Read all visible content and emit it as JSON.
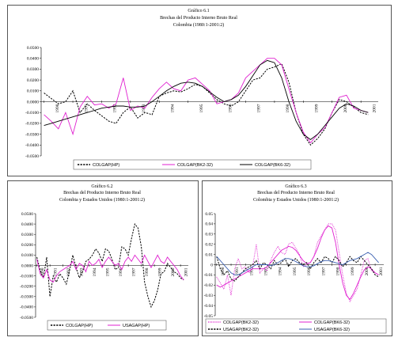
{
  "chart_data": [
    {
      "type": "line",
      "title": "Gráfico 6.1",
      "subtitle": "Brechas del Producto Interno Bruto Real",
      "subtitle2": "Colombia (1980:1-2001:2)",
      "ylim": [
        -0.05,
        0.05
      ],
      "yticks": [
        "0.0500",
        "0.0400",
        "0.0300",
        "0.0200",
        "0.0100",
        "0.0000",
        "-0.0100",
        "-0.0200",
        "-0.0300",
        "-0.0400",
        "-0.0500"
      ],
      "ytick_values": [
        0.05,
        0.04,
        0.03,
        0.02,
        0.01,
        0,
        -0.01,
        -0.02,
        -0.03,
        -0.04,
        -0.05
      ],
      "xticks": [
        "1990",
        "1991",
        "1992",
        "1993",
        "1994",
        "1995",
        "1996",
        "1997",
        "1998",
        "1999",
        "2000",
        "2001"
      ],
      "xlim": [
        1989.9,
        2001.6
      ],
      "x": [
        1990.0,
        1990.25,
        1990.5,
        1990.75,
        1991.0,
        1991.25,
        1991.5,
        1991.75,
        1992.0,
        1992.25,
        1992.5,
        1992.75,
        1993.0,
        1993.25,
        1993.5,
        1993.75,
        1994.0,
        1994.25,
        1994.5,
        1994.75,
        1995.0,
        1995.25,
        1995.5,
        1995.75,
        1996.0,
        1996.25,
        1996.5,
        1996.75,
        1997.0,
        1997.25,
        1997.5,
        1997.75,
        1998.0,
        1998.25,
        1998.5,
        1998.75,
        1999.0,
        1999.25,
        1999.5,
        1999.75,
        2000.0,
        2000.25,
        2000.5,
        2000.75,
        2001.0,
        2001.25
      ],
      "series": [
        {
          "name": "COLGAP(HP)",
          "style": "dashed",
          "color": "#000000",
          "values": [
            0.008,
            0.003,
            -0.002,
            0.0,
            0.01,
            -0.01,
            -0.002,
            -0.008,
            -0.013,
            -0.018,
            -0.02,
            -0.01,
            -0.005,
            -0.015,
            -0.01,
            -0.012,
            0.005,
            0.008,
            0.01,
            0.009,
            0.012,
            0.016,
            0.014,
            0.008,
            0.002,
            -0.002,
            -0.004,
            0.0,
            0.01,
            0.02,
            0.022,
            0.03,
            0.032,
            0.035,
            0.018,
            -0.01,
            -0.03,
            -0.04,
            -0.034,
            -0.025,
            -0.01,
            0.002,
            0.0,
            -0.005,
            -0.01,
            -0.012
          ]
        },
        {
          "name": "COLGAP(BK2-32)",
          "style": "solid",
          "color": "#e020d0",
          "values": [
            -0.012,
            -0.018,
            -0.025,
            -0.01,
            -0.03,
            -0.005,
            0.005,
            -0.003,
            -0.002,
            -0.006,
            -0.002,
            0.022,
            -0.008,
            -0.004,
            -0.006,
            0.004,
            0.012,
            0.018,
            0.012,
            0.01,
            0.02,
            0.022,
            0.016,
            0.01,
            -0.002,
            0.0,
            0.002,
            0.008,
            0.022,
            0.028,
            0.034,
            0.04,
            0.04,
            0.034,
            0.012,
            -0.01,
            -0.028,
            -0.038,
            -0.03,
            -0.024,
            -0.01,
            0.004,
            0.006,
            -0.006,
            -0.008,
            -0.01
          ]
        },
        {
          "name": "COLGAP(BK6-32)",
          "style": "solid",
          "color": "#000000",
          "values": [
            -0.022,
            -0.02,
            -0.018,
            -0.016,
            -0.014,
            -0.012,
            -0.01,
            -0.008,
            -0.006,
            -0.005,
            -0.004,
            -0.004,
            -0.005,
            -0.005,
            -0.004,
            0.0,
            0.005,
            0.01,
            0.014,
            0.017,
            0.018,
            0.017,
            0.014,
            0.009,
            0.004,
            0.0,
            0.002,
            0.006,
            0.014,
            0.024,
            0.034,
            0.038,
            0.036,
            0.022,
            0.0,
            -0.018,
            -0.03,
            -0.035,
            -0.03,
            -0.022,
            -0.014,
            -0.006,
            -0.002,
            -0.004,
            -0.008,
            -0.01
          ]
        }
      ],
      "legend": [
        "COLGAP(HP)",
        "COLGAP(BK2-32)",
        "COLGAP(BK6-32)"
      ],
      "legend_position": "bottom"
    },
    {
      "type": "line",
      "title": "Gráfico 6.2",
      "subtitle": "Brechas del Producto Interno Bruto Real",
      "subtitle2": "Colombia y Estados Unidos (1980:1-2001:2)",
      "ylim": [
        -0.05,
        0.05
      ],
      "yticks": [
        "0.0500",
        "0.0400",
        "0.0300",
        "0.0200",
        "0.0100",
        "0.0000",
        "-0.0100",
        "-0.0200",
        "-0.0300",
        "-0.0400",
        "-0.0500"
      ],
      "ytick_values": [
        0.05,
        0.04,
        0.03,
        0.02,
        0.01,
        0,
        -0.01,
        -0.02,
        -0.03,
        -0.04,
        -0.05
      ],
      "xticks": [
        "1990",
        "1991",
        "1992",
        "1993",
        "1994",
        "1995",
        "1996",
        "1997",
        "1998",
        "1999",
        "2000",
        "2001"
      ],
      "xlim": [
        1989.9,
        2001.6
      ],
      "x": [
        1990.0,
        1990.25,
        1990.5,
        1990.75,
        1991.0,
        1991.25,
        1991.5,
        1991.75,
        1992.0,
        1992.25,
        1992.5,
        1992.75,
        1993.0,
        1993.25,
        1993.5,
        1993.75,
        1994.0,
        1994.25,
        1994.5,
        1994.75,
        1995.0,
        1995.25,
        1995.5,
        1995.75,
        1996.0,
        1996.25,
        1996.5,
        1996.75,
        1997.0,
        1997.25,
        1997.5,
        1997.75,
        1998.0,
        1998.25,
        1998.5,
        1998.75,
        1999.0,
        1999.25,
        1999.5,
        1999.75,
        2000.0,
        2000.25,
        2000.5,
        2000.75,
        2001.0,
        2001.25
      ],
      "series": [
        {
          "name": "COLGAP(HP)",
          "style": "dashed",
          "color": "#000000",
          "values": [
            0.008,
            -0.005,
            -0.012,
            0.008,
            -0.03,
            -0.01,
            -0.016,
            -0.008,
            -0.012,
            -0.018,
            -0.005,
            0.01,
            -0.002,
            -0.012,
            -0.006,
            0.004,
            0.006,
            0.01,
            0.016,
            0.012,
            0.004,
            0.016,
            0.014,
            0.006,
            -0.004,
            -0.002,
            0.018,
            0.016,
            0.01,
            0.026,
            0.04,
            0.036,
            0.018,
            -0.016,
            -0.03,
            -0.04,
            -0.034,
            -0.024,
            -0.008,
            -0.006,
            0.002,
            -0.002,
            -0.006,
            -0.008,
            -0.012,
            -0.014
          ]
        },
        {
          "name": "USAGAP(HP)",
          "style": "solid",
          "color": "#e020d0",
          "values": [
            0.006,
            -0.008,
            -0.012,
            -0.004,
            -0.014,
            -0.016,
            -0.01,
            -0.006,
            -0.004,
            -0.002,
            0.0,
            0.004,
            -0.004,
            0.002,
            0.0,
            -0.006,
            0.004,
            0.0,
            0.002,
            0.006,
            -0.002,
            0.004,
            0.008,
            0.004,
            0.0,
            0.002,
            -0.004,
            0.004,
            0.008,
            0.004,
            0.01,
            0.006,
            0.002,
            0.01,
            0.004,
            -0.002,
            0.004,
            0.01,
            0.004,
            0.002,
            0.008,
            0.004,
            0.0,
            -0.004,
            -0.01,
            -0.014
          ]
        }
      ],
      "legend": [
        "COLGAP(HP)",
        "USAGAP(HP)"
      ],
      "legend_position": "bottom"
    },
    {
      "type": "line",
      "title": "Gráfico 6.3",
      "subtitle": "Brechas del Producto Interno Bruto Real",
      "subtitle2": "Colombia y Estados Unidos (1980:1-2001:2)",
      "ylim": [
        -0.05,
        0.05
      ],
      "yticks": [
        "0.05",
        "0.04",
        "0.03",
        "0.02",
        "0.01",
        "0",
        "-0.01",
        "-0.02",
        "-0.03",
        "-0.04",
        "-0.05"
      ],
      "ytick_values": [
        0.05,
        0.04,
        0.03,
        0.02,
        0.01,
        0,
        -0.01,
        -0.02,
        -0.03,
        -0.04,
        -0.05
      ],
      "xticks": [
        "1990",
        "1991",
        "1992",
        "1993",
        "1994",
        "1995",
        "1996",
        "1997",
        "1998",
        "1999",
        "2000",
        "2001"
      ],
      "xlim": [
        1989.9,
        2001.6
      ],
      "x": [
        1990.0,
        1990.25,
        1990.5,
        1990.75,
        1991.0,
        1991.25,
        1991.5,
        1991.75,
        1992.0,
        1992.25,
        1992.5,
        1992.75,
        1993.0,
        1993.25,
        1993.5,
        1993.75,
        1994.0,
        1994.25,
        1994.5,
        1994.75,
        1995.0,
        1995.25,
        1995.5,
        1995.75,
        1996.0,
        1996.25,
        1996.5,
        1996.75,
        1997.0,
        1997.25,
        1997.5,
        1997.75,
        1998.0,
        1998.25,
        1998.5,
        1998.75,
        1999.0,
        1999.25,
        1999.5,
        1999.75,
        2000.0,
        2000.25,
        2000.5,
        2000.75,
        2001.0,
        2001.25
      ],
      "series": [
        {
          "name": "COLGAP(BK2-32)",
          "style": "dotted",
          "color": "#e020d0",
          "values": [
            -0.012,
            -0.018,
            -0.024,
            -0.01,
            -0.03,
            -0.004,
            0.006,
            -0.004,
            -0.002,
            -0.008,
            -0.002,
            0.02,
            -0.008,
            -0.004,
            -0.006,
            0.004,
            0.012,
            0.018,
            0.012,
            0.01,
            0.02,
            0.022,
            0.016,
            0.01,
            -0.002,
            0.0,
            0.002,
            0.008,
            0.022,
            0.028,
            0.034,
            0.04,
            0.04,
            0.034,
            0.012,
            -0.01,
            -0.028,
            -0.036,
            -0.03,
            -0.024,
            -0.01,
            0.004,
            0.006,
            -0.006,
            -0.008,
            -0.01
          ]
        },
        {
          "name": "COLGAP(BK6-32)",
          "style": "solid",
          "color": "#e020d0",
          "values": [
            -0.02,
            -0.022,
            -0.02,
            -0.018,
            -0.016,
            -0.014,
            -0.012,
            -0.01,
            -0.008,
            -0.006,
            -0.004,
            -0.004,
            -0.004,
            -0.004,
            -0.002,
            0.002,
            0.006,
            0.01,
            0.014,
            0.016,
            0.018,
            0.017,
            0.014,
            0.009,
            0.004,
            0.001,
            0.002,
            0.008,
            0.016,
            0.026,
            0.034,
            0.038,
            0.036,
            0.022,
            0.0,
            -0.018,
            -0.03,
            -0.034,
            -0.028,
            -0.02,
            -0.012,
            -0.005,
            -0.002,
            -0.004,
            -0.008,
            -0.01
          ]
        },
        {
          "name": "USAGAP(BK2-32)",
          "style": "dashed",
          "color": "#000000",
          "values": [
            0.008,
            -0.004,
            -0.01,
            -0.006,
            -0.014,
            -0.016,
            -0.012,
            -0.008,
            -0.004,
            -0.002,
            0.0,
            0.004,
            -0.004,
            0.002,
            0.0,
            -0.004,
            0.004,
            0.0,
            0.002,
            0.006,
            -0.002,
            0.004,
            0.006,
            0.002,
            0.0,
            0.002,
            -0.004,
            0.002,
            0.006,
            0.002,
            0.008,
            0.006,
            0.002,
            0.008,
            0.004,
            -0.002,
            0.002,
            0.008,
            0.004,
            0.002,
            0.008,
            0.004,
            0.0,
            -0.004,
            -0.01,
            -0.012
          ]
        },
        {
          "name": "USAGAP(BK6-32)",
          "style": "solid",
          "color": "#3a5fb0",
          "values": [
            0.008,
            0.004,
            0.0,
            -0.004,
            -0.008,
            -0.01,
            -0.01,
            -0.008,
            -0.006,
            -0.004,
            -0.002,
            0.0,
            0.0,
            0.0,
            0.0,
            -0.001,
            0.0,
            0.002,
            0.004,
            0.006,
            0.006,
            0.005,
            0.003,
            0.001,
            -0.001,
            -0.002,
            -0.002,
            -0.001,
            0.001,
            0.003,
            0.004,
            0.004,
            0.003,
            0.002,
            0.001,
            0.0,
            0.002,
            0.004,
            0.005,
            0.006,
            0.008,
            0.01,
            0.012,
            0.01,
            0.006,
            0.002
          ]
        }
      ],
      "legend": [
        "COLGAP(BK2-32)",
        "COLGAP(BK6-32)",
        "USAGAP(BK2-32)",
        "USAGAP(BK6-32)"
      ],
      "legend_position": "bottom"
    }
  ]
}
